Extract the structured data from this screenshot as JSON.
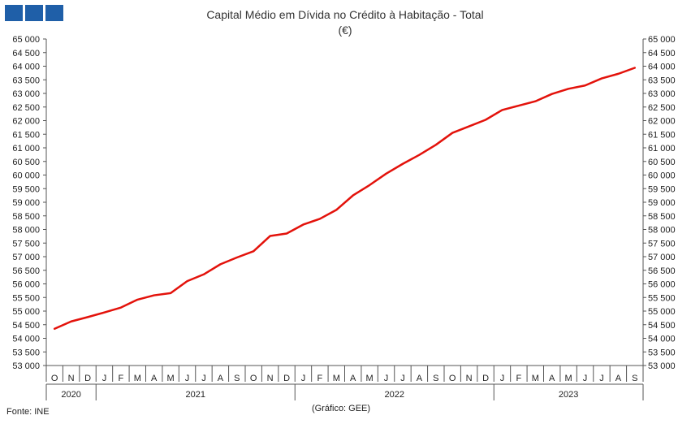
{
  "logo": {
    "name": "gee-logo-squares",
    "color": "#1f5fa8"
  },
  "title_line1": "Capital Médio em Dívida no Crédito à Habitação - Total",
  "title_line2": "(€)",
  "source": "Fonte: INE",
  "credit": "(Gráfico: GEE)",
  "colors": {
    "series": "#e3120b",
    "axis": "#555555",
    "text": "#222222"
  },
  "chart_data": {
    "type": "line",
    "title": "Capital Médio em Dívida no Crédito à Habitação - Total",
    "subtitle": "(€)",
    "xlabel": "",
    "ylabel": "",
    "ylim": [
      53000,
      65000
    ],
    "y_ticks": [
      "65 000",
      "64 500",
      "64 000",
      "63 500",
      "63 000",
      "62 500",
      "62 000",
      "61 500",
      "61 000",
      "60 500",
      "60 000",
      "59 500",
      "59 000",
      "58 500",
      "58 000",
      "57 500",
      "57 000",
      "56 500",
      "56 000",
      "55 500",
      "55 000",
      "54 500",
      "54 000",
      "53 500",
      "53 000"
    ],
    "y_ticks_right": [
      "65 000",
      "64 500",
      "64 000",
      "63 500",
      "63 000",
      "62 500",
      "62 000",
      "61 500",
      "61 000",
      "60 500",
      "60 000",
      "59 500",
      "59 000",
      "58 500",
      "58 000",
      "57 500",
      "57 000",
      "56 500",
      "56 000",
      "55 500",
      "55 000",
      "54 500",
      "54 000",
      "53 500",
      "53 000"
    ],
    "months": [
      "O",
      "N",
      "D",
      "J",
      "F",
      "M",
      "A",
      "M",
      "J",
      "J",
      "A",
      "S",
      "O",
      "N",
      "D",
      "J",
      "F",
      "M",
      "A",
      "M",
      "J",
      "J",
      "A",
      "S",
      "O",
      "N",
      "D",
      "J",
      "F",
      "M",
      "A",
      "M",
      "J",
      "J",
      "A",
      "S"
    ],
    "years": [
      {
        "label": "2020",
        "months": 3
      },
      {
        "label": "2021",
        "months": 12
      },
      {
        "label": "2022",
        "months": 12
      },
      {
        "label": "2023",
        "months": 9
      }
    ],
    "grid": false,
    "legend": "none",
    "series": [
      {
        "values": [
          54350,
          54620,
          54780,
          54950,
          55130,
          55420,
          55580,
          55660,
          56100,
          56350,
          56720,
          56970,
          57200,
          57760,
          57850,
          58180,
          58390,
          58720,
          59250,
          59630,
          60050,
          60410,
          60740,
          61110,
          61550,
          61790,
          62030,
          62390,
          62550,
          62710,
          62980,
          63170,
          63290,
          63550,
          63720,
          63940
        ]
      }
    ]
  }
}
